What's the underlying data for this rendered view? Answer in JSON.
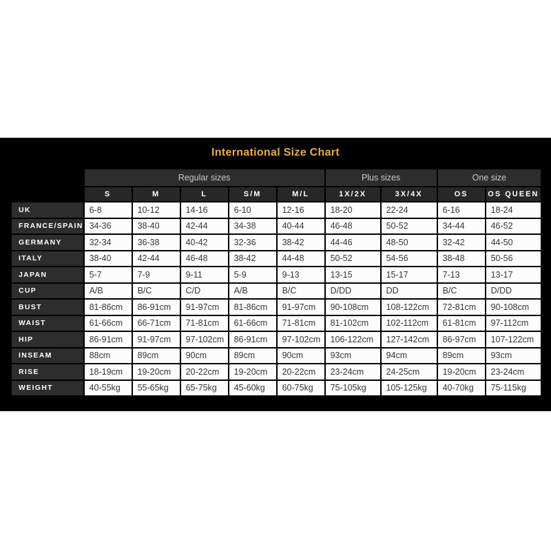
{
  "title": "International Size Chart",
  "colors": {
    "title_gold": "#E9AF3F",
    "band_background": "#000000",
    "dark_cell": "#2D2D2D",
    "header_text": "#FFFFFF",
    "group_header_text": "#C9C9C9",
    "data_cell": "#FCFCFC",
    "data_text": "#363636"
  },
  "chart_data": {
    "type": "table",
    "title": "International Size Chart",
    "column_groups": [
      {
        "label": "Regular sizes",
        "span": 5
      },
      {
        "label": "Plus sizes",
        "span": 2
      },
      {
        "label": "One size",
        "span": 2
      }
    ],
    "columns": [
      "S",
      "M",
      "L",
      "S/M",
      "M/L",
      "1X/2X",
      "3X/4X",
      "OS",
      "OS QUEEN"
    ],
    "rows": [
      {
        "label": "UK",
        "values": [
          "6-8",
          "10-12",
          "14-16",
          "6-10",
          "12-16",
          "18-20",
          "22-24",
          "6-16",
          "18-24"
        ]
      },
      {
        "label": "FRANCE/SPAIN",
        "values": [
          "34-36",
          "38-40",
          "42-44",
          "34-38",
          "40-44",
          "46-48",
          "50-52",
          "34-44",
          "46-52"
        ]
      },
      {
        "label": "GERMANY",
        "values": [
          "32-34",
          "36-38",
          "40-42",
          "32-36",
          "38-42",
          "44-46",
          "48-50",
          "32-42",
          "44-50"
        ]
      },
      {
        "label": "ITALY",
        "values": [
          "38-40",
          "42-44",
          "46-48",
          "38-42",
          "44-48",
          "50-52",
          "54-56",
          "38-48",
          "50-56"
        ]
      },
      {
        "label": "JAPAN",
        "values": [
          "5-7",
          "7-9",
          "9-11",
          "5-9",
          "9-13",
          "13-15",
          "15-17",
          "7-13",
          "13-17"
        ]
      },
      {
        "label": "CUP",
        "values": [
          "A/B",
          "B/C",
          "C/D",
          "A/B",
          "B/C",
          "D/DD",
          "DD",
          "B/C",
          "D/DD"
        ]
      },
      {
        "label": "BUST",
        "values": [
          "81-86cm",
          "86-91cm",
          "91-97cm",
          "81-86cm",
          "91-97cm",
          "90-108cm",
          "108-122cm",
          "72-81cm",
          "90-108cm"
        ]
      },
      {
        "label": "WAIST",
        "values": [
          "61-66cm",
          "66-71cm",
          "71-81cm",
          "61-66cm",
          "71-81cm",
          "81-102cm",
          "102-112cm",
          "61-81cm",
          "97-112cm"
        ]
      },
      {
        "label": "HIP",
        "values": [
          "86-91cm",
          "91-97cm",
          "97-102cm",
          "86-91cm",
          "97-102cm",
          "106-122cm",
          "127-142cm",
          "86-97cm",
          "107-122cm"
        ]
      },
      {
        "label": "INSEAM",
        "values": [
          "88cm",
          "89cm",
          "90cm",
          "89cm",
          "90cm",
          "93cm",
          "94cm",
          "89cm",
          "93cm"
        ]
      },
      {
        "label": "RISE",
        "values": [
          "18-19cm",
          "19-20cm",
          "20-22cm",
          "19-20cm",
          "20-22cm",
          "23-24cm",
          "24-25cm",
          "19-20cm",
          "23-24cm"
        ]
      },
      {
        "label": "WEIGHT",
        "values": [
          "40-55kg",
          "55-65kg",
          "65-75kg",
          "45-60kg",
          "60-75kg",
          "75-105kg",
          "105-125kg",
          "40-70kg",
          "75-115kg"
        ]
      }
    ]
  }
}
